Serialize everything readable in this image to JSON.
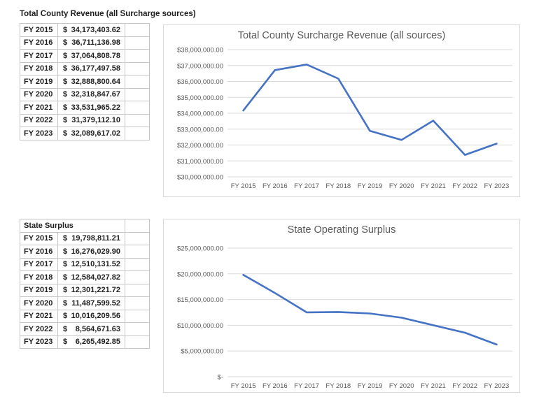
{
  "tables": [
    {
      "title": "Total County Revenue (all Surcharge sources)",
      "title_in_grid": false,
      "rows": [
        {
          "year": "FY 2015",
          "currency": "$",
          "value": "34,173,403.62"
        },
        {
          "year": "FY 2016",
          "currency": "$",
          "value": "36,711,136.98"
        },
        {
          "year": "FY 2017",
          "currency": "$",
          "value": "37,064,808.78"
        },
        {
          "year": "FY 2018",
          "currency": "$",
          "value": "36,177,497.58"
        },
        {
          "year": "FY 2019",
          "currency": "$",
          "value": "32,888,800.64"
        },
        {
          "year": "FY 2020",
          "currency": "$",
          "value": "32,318,847.67"
        },
        {
          "year": "FY 2021",
          "currency": "$",
          "value": "33,531,965.22"
        },
        {
          "year": "FY 2022",
          "currency": "$",
          "value": "31,379,112.10"
        },
        {
          "year": "FY 2023",
          "currency": "$",
          "value": "32,089,617.02"
        }
      ]
    },
    {
      "title": "State Surplus",
      "title_in_grid": true,
      "rows": [
        {
          "year": "FY 2015",
          "currency": "$",
          "value": "19,798,811.21"
        },
        {
          "year": "FY 2016",
          "currency": "$",
          "value": "16,276,029.90"
        },
        {
          "year": "FY 2017",
          "currency": "$",
          "value": "12,510,131.52"
        },
        {
          "year": "FY 2018",
          "currency": "$",
          "value": "12,584,027.82"
        },
        {
          "year": "FY 2019",
          "currency": "$",
          "value": "12,301,221.72"
        },
        {
          "year": "FY 2020",
          "currency": "$",
          "value": "11,487,599.52"
        },
        {
          "year": "FY 2021",
          "currency": "$",
          "value": "10,016,209.56"
        },
        {
          "year": "FY 2022",
          "currency": "$",
          "value": "8,564,671.63"
        },
        {
          "year": "FY 2023",
          "currency": "$",
          "value": "6,265,492.85"
        }
      ]
    }
  ],
  "chart_data": [
    {
      "type": "line",
      "title": "Total County Surcharge Revenue (all sources)",
      "categories": [
        "FY 2015",
        "FY 2016",
        "FY 2017",
        "FY 2018",
        "FY 2019",
        "FY 2020",
        "FY 2021",
        "FY 2022",
        "FY 2023"
      ],
      "values": [
        34173403.62,
        36711136.98,
        37064808.78,
        36177497.58,
        32888800.64,
        32318847.67,
        33531965.22,
        31379112.1,
        32089617.02
      ],
      "xlabel": "",
      "ylabel": "",
      "ylim": [
        30000000,
        38000000
      ],
      "ytick_step": 1000000,
      "ytick_labels": [
        "$38,000,000.00",
        "$37,000,000.00",
        "$36,000,000.00",
        "$35,000,000.00",
        "$34,000,000.00",
        "$33,000,000.00",
        "$32,000,000.00",
        "$31,000,000.00",
        "$30,000,000.00"
      ],
      "grid": true,
      "legend": "none",
      "line_color": "#4472C4",
      "gridline_color": "#d9d9d9"
    },
    {
      "type": "line",
      "title": "State Operating Surplus",
      "categories": [
        "FY 2015",
        "FY 2016",
        "FY 2017",
        "FY 2018",
        "FY 2019",
        "FY 2020",
        "FY 2021",
        "FY 2022",
        "FY 2023"
      ],
      "values": [
        19798811.21,
        16276029.9,
        12510131.52,
        12584027.82,
        12301221.72,
        11487599.52,
        10016209.56,
        8564671.63,
        6265492.85
      ],
      "xlabel": "",
      "ylabel": "",
      "ylim": [
        0,
        25000000
      ],
      "ytick_step": 5000000,
      "ytick_labels": [
        "$25,000,000.00",
        "$20,000,000.00",
        "$15,000,000.00",
        "$10,000,000.00",
        "$5,000,000.00",
        "$-"
      ],
      "grid": true,
      "legend": "none",
      "line_color": "#4472C4",
      "gridline_color": "#d9d9d9"
    }
  ]
}
